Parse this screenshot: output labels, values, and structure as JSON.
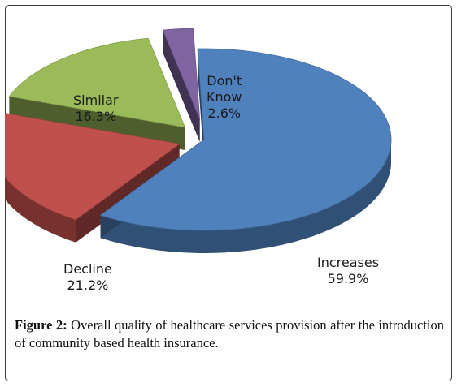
{
  "chart_data": {
    "type": "pie",
    "style": "3d-exploded",
    "slices": [
      {
        "name": "Increases",
        "value": 59.9,
        "label": "59.9%",
        "color": "#4f81bd"
      },
      {
        "name": "Decline",
        "value": 21.2,
        "label": "21.2%",
        "color": "#c0504d"
      },
      {
        "name": "Similar",
        "value": 16.3,
        "label": "16.3%",
        "color": "#9bbb59"
      },
      {
        "name": "Don't Know",
        "value": 2.6,
        "label": "2.6%",
        "color": "#8064a2"
      }
    ]
  },
  "labels": {
    "increases": {
      "name": "Increases",
      "value": "59.9%"
    },
    "decline": {
      "name": "Decline",
      "value": "21.2%"
    },
    "similar": {
      "name": "Similar",
      "value": "16.3%"
    },
    "dontknow": {
      "name_line1": "Don't",
      "name_line2": "Know",
      "value": "2.6%"
    }
  },
  "caption": {
    "label": "Figure 2:",
    "text": " Overall quality of healthcare services provision after the introduction of community based health insurance."
  }
}
